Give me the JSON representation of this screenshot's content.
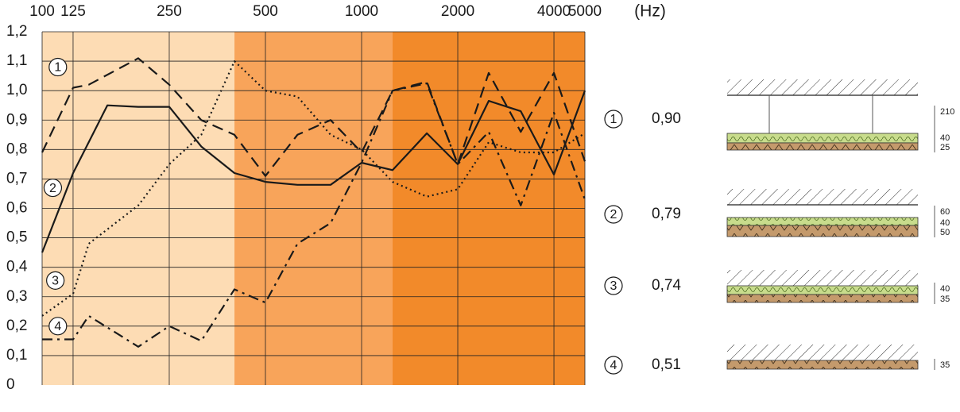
{
  "chart_data": {
    "type": "line",
    "x_unit_label": "(Hz)",
    "x_scale": "log",
    "xlim": [
      100,
      5000
    ],
    "ylim": [
      0,
      1.2
    ],
    "x_tick_labels": [
      "100",
      "125",
      "250",
      "500",
      "1000",
      "2000",
      "4000",
      "5000"
    ],
    "x_ticks": [
      100,
      125,
      250,
      500,
      1000,
      2000,
      4000,
      5000
    ],
    "y_tick_labels": [
      "0",
      "0,1",
      "0,2",
      "0,3",
      "0,4",
      "0,5",
      "0,6",
      "0,7",
      "0,8",
      "0,9",
      "1,0",
      "1,1",
      "1,2"
    ],
    "y_ticks": [
      0,
      0.1,
      0.2,
      0.3,
      0.4,
      0.5,
      0.6,
      0.7,
      0.8,
      0.9,
      1.0,
      1.1,
      1.2
    ],
    "grid": true,
    "background_bands": [
      {
        "from": 100,
        "to": 400,
        "color": "#fddcb4"
      },
      {
        "from": 400,
        "to": 1250,
        "color": "#f8a45a"
      },
      {
        "from": 1250,
        "to": 5000,
        "color": "#f28a2a"
      }
    ],
    "series": [
      {
        "marker": "1",
        "style": "dashed",
        "label_at": [
          112,
          1.08
        ],
        "points": [
          [
            100,
            0.79
          ],
          [
            125,
            1.01
          ],
          [
            140,
            1.02
          ],
          [
            200,
            1.11
          ],
          [
            250,
            1.02
          ],
          [
            315,
            0.9
          ],
          [
            400,
            0.85
          ],
          [
            500,
            0.71
          ],
          [
            630,
            0.85
          ],
          [
            800,
            0.9
          ],
          [
            1000,
            0.79
          ],
          [
            1250,
            1.0
          ],
          [
            1600,
            1.03
          ],
          [
            2000,
            0.75
          ],
          [
            2500,
            1.06
          ],
          [
            3150,
            0.86
          ],
          [
            4000,
            1.06
          ],
          [
            5000,
            0.76
          ]
        ]
      },
      {
        "marker": "2",
        "style": "solid",
        "label_at": [
          108,
          0.67
        ],
        "points": [
          [
            100,
            0.45
          ],
          [
            125,
            0.72
          ],
          [
            160,
            0.95
          ],
          [
            200,
            0.945
          ],
          [
            250,
            0.945
          ],
          [
            315,
            0.81
          ],
          [
            400,
            0.72
          ],
          [
            500,
            0.69
          ],
          [
            630,
            0.68
          ],
          [
            800,
            0.68
          ],
          [
            1000,
            0.755
          ],
          [
            1250,
            0.73
          ],
          [
            1600,
            0.855
          ],
          [
            2000,
            0.75
          ],
          [
            2500,
            0.965
          ],
          [
            3150,
            0.93
          ],
          [
            4000,
            0.715
          ],
          [
            5000,
            1.0
          ]
        ]
      },
      {
        "marker": "3",
        "style": "dotted",
        "label_at": [
          110,
          0.355
        ],
        "points": [
          [
            100,
            0.235
          ],
          [
            125,
            0.31
          ],
          [
            140,
            0.48
          ],
          [
            200,
            0.61
          ],
          [
            250,
            0.75
          ],
          [
            315,
            0.85
          ],
          [
            400,
            1.1
          ],
          [
            500,
            1.0
          ],
          [
            630,
            0.98
          ],
          [
            800,
            0.85
          ],
          [
            1000,
            0.8
          ],
          [
            1250,
            0.69
          ],
          [
            1600,
            0.64
          ],
          [
            2000,
            0.665
          ],
          [
            2500,
            0.825
          ],
          [
            3150,
            0.79
          ],
          [
            4000,
            0.79
          ],
          [
            5000,
            0.855
          ]
        ]
      },
      {
        "marker": "4",
        "style": "dashdot",
        "label_at": [
          112,
          0.2
        ],
        "points": [
          [
            100,
            0.155
          ],
          [
            125,
            0.155
          ],
          [
            140,
            0.235
          ],
          [
            200,
            0.13
          ],
          [
            250,
            0.2
          ],
          [
            315,
            0.15
          ],
          [
            400,
            0.325
          ],
          [
            500,
            0.28
          ],
          [
            630,
            0.48
          ],
          [
            800,
            0.55
          ],
          [
            1000,
            0.755
          ],
          [
            1250,
            1.0
          ],
          [
            1600,
            1.025
          ],
          [
            2000,
            0.75
          ],
          [
            2500,
            0.86
          ],
          [
            3150,
            0.61
          ],
          [
            4000,
            0.925
          ],
          [
            5000,
            0.63
          ]
        ]
      }
    ],
    "legend": [
      {
        "marker": "1",
        "value": "0,90",
        "layer_labels": [
          "210",
          "40",
          "25"
        ]
      },
      {
        "marker": "2",
        "value": "0,79",
        "layer_labels": [
          "60",
          "40",
          "50"
        ]
      },
      {
        "marker": "3",
        "value": "0,74",
        "layer_labels": [
          "40",
          "35"
        ]
      },
      {
        "marker": "4",
        "value": "0,51",
        "layer_labels": [
          "35"
        ]
      }
    ]
  }
}
